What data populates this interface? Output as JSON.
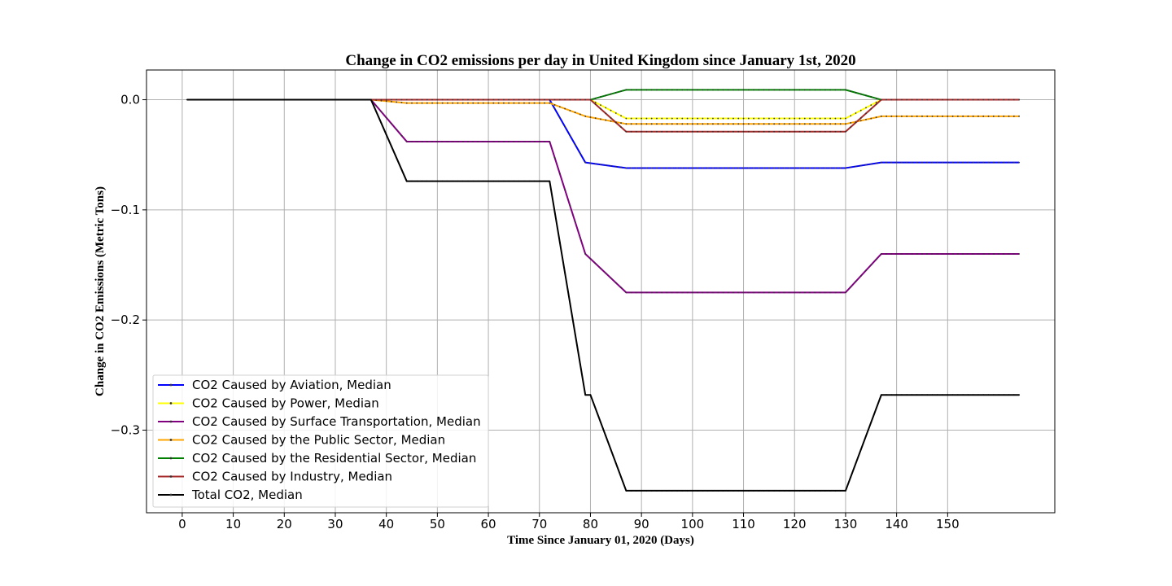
{
  "chart_data": {
    "type": "line",
    "title": "Change in CO2 emissions per day in United Kingdom since January 1st, 2020",
    "xlabel": "Time Since January 01, 2020 (Days)",
    "ylabel": "Change in CO2 Emissions (Metric Tons)",
    "xlim": [
      -7,
      171
    ],
    "ylim": [
      -0.375,
      0.027
    ],
    "xticks": [
      0,
      10,
      20,
      30,
      40,
      50,
      60,
      70,
      80,
      90,
      100,
      110,
      120,
      130,
      140,
      150
    ],
    "yticks": [
      0.0,
      -0.1,
      -0.2,
      -0.3
    ],
    "ytick_labels": [
      "0.0",
      "−0.1",
      "−0.2",
      "−0.3"
    ],
    "grid": true,
    "legend_position": "lower-left",
    "series": [
      {
        "name": "CO2 Caused by Aviation, Median",
        "color": "#0000ff",
        "points": [
          [
            1,
            0
          ],
          [
            72,
            0
          ],
          [
            79,
            -0.057
          ],
          [
            87,
            -0.062
          ],
          [
            130,
            -0.062
          ],
          [
            137,
            -0.057
          ],
          [
            164,
            -0.057
          ]
        ]
      },
      {
        "name": "CO2 Caused by Power, Median",
        "color": "#ffff00",
        "points": [
          [
            1,
            0
          ],
          [
            80,
            0
          ],
          [
            87,
            -0.017
          ],
          [
            130,
            -0.017
          ],
          [
            137,
            0
          ],
          [
            164,
            0
          ]
        ]
      },
      {
        "name": "CO2 Caused by Surface Transportation, Median",
        "color": "#800080",
        "points": [
          [
            1,
            0
          ],
          [
            37,
            0
          ],
          [
            44,
            -0.038
          ],
          [
            72,
            -0.038
          ],
          [
            79,
            -0.14
          ],
          [
            87,
            -0.175
          ],
          [
            130,
            -0.175
          ],
          [
            137,
            -0.14
          ],
          [
            164,
            -0.14
          ]
        ]
      },
      {
        "name": "CO2 Caused by the Public Sector, Median",
        "color": "#ffa500",
        "points": [
          [
            1,
            0
          ],
          [
            37,
            0
          ],
          [
            44,
            -0.003
          ],
          [
            72,
            -0.003
          ],
          [
            79,
            -0.015
          ],
          [
            87,
            -0.022
          ],
          [
            130,
            -0.022
          ],
          [
            137,
            -0.015
          ],
          [
            164,
            -0.015
          ]
        ]
      },
      {
        "name": "CO2 Caused by the Residential Sector, Median",
        "color": "#008000",
        "points": [
          [
            1,
            0
          ],
          [
            80,
            0
          ],
          [
            87,
            0.009
          ],
          [
            130,
            0.009
          ],
          [
            137,
            0
          ],
          [
            164,
            0
          ]
        ]
      },
      {
        "name": "CO2 Caused by Industry, Median",
        "color": "#a52a2a",
        "points": [
          [
            1,
            0
          ],
          [
            80,
            0
          ],
          [
            87,
            -0.029
          ],
          [
            130,
            -0.029
          ],
          [
            137,
            0
          ],
          [
            164,
            0
          ]
        ]
      },
      {
        "name": "Total CO2, Median",
        "color": "#000000",
        "points": [
          [
            1,
            0
          ],
          [
            37,
            0
          ],
          [
            44,
            -0.074
          ],
          [
            72,
            -0.074
          ],
          [
            79,
            -0.268
          ],
          [
            80,
            -0.268
          ],
          [
            87,
            -0.355
          ],
          [
            130,
            -0.355
          ],
          [
            137,
            -0.268
          ],
          [
            164,
            -0.268
          ]
        ]
      }
    ]
  }
}
